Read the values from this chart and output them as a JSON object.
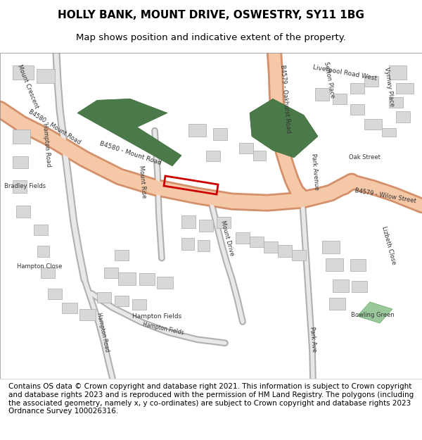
{
  "title": "HOLLY BANK, MOUNT DRIVE, OSWESTRY, SY11 1BG",
  "subtitle": "Map shows position and indicative extent of the property.",
  "footer": "Contains OS data © Crown copyright and database right 2021. This information is subject to Crown copyright and database rights 2023 and is reproduced with the permission of HM Land Registry. The polygons (including the associated geometry, namely x, y co-ordinates) are subject to Crown copyright and database rights 2023 Ordnance Survey 100026316.",
  "bg_color": "#ffffff",
  "map_bg": "#f2f0eb",
  "road_salmon": "#f5c8a8",
  "road_outline": "#d4906a",
  "green_dark": "#4a7a4a",
  "green_light": "#9ac89a",
  "building_fill": "#d8d8d8",
  "building_outline": "#aaaaaa",
  "plot_color": "#cc0000",
  "text_color": "#333333",
  "title_fontsize": 11,
  "subtitle_fontsize": 9.5,
  "footer_fontsize": 7.5
}
